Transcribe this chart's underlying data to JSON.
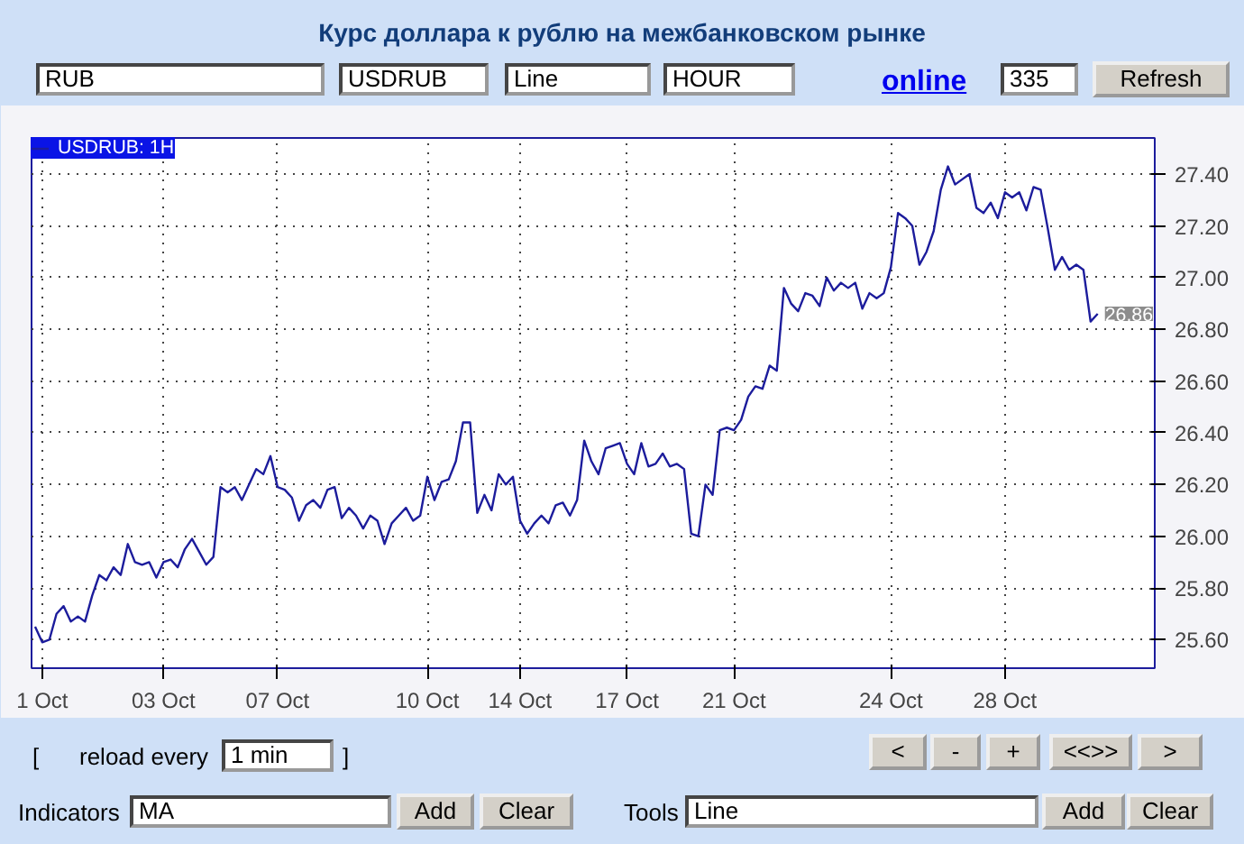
{
  "chart_data": {
    "type": "line",
    "title": "Курс доллара к рублю на межбанковском рынке",
    "categories": [
      null,
      "1 Oct",
      null,
      null,
      null,
      null,
      null,
      null,
      null,
      null,
      null,
      null,
      null,
      null,
      null,
      null,
      null,
      null,
      "03 Oct",
      null,
      null,
      null,
      null,
      null,
      null,
      null,
      null,
      null,
      null,
      null,
      null,
      null,
      null,
      null,
      "07 Oct",
      null,
      null,
      null,
      null,
      null,
      null,
      null,
      null,
      null,
      null,
      null,
      null,
      null,
      null,
      null,
      null,
      null,
      null,
      null,
      null,
      "10 Oct",
      null,
      null,
      null,
      null,
      null,
      null,
      null,
      null,
      null,
      null,
      null,
      null,
      "14 Oct",
      null,
      null,
      null,
      null,
      null,
      null,
      null,
      null,
      null,
      null,
      null,
      null,
      null,
      null,
      "17 Oct",
      null,
      null,
      null,
      null,
      null,
      null,
      null,
      null,
      null,
      null,
      null,
      null,
      null,
      null,
      "21 Oct",
      null,
      null,
      null,
      null,
      null,
      null,
      null,
      null,
      null,
      null,
      null,
      null,
      null,
      null,
      null,
      null,
      null,
      null,
      null,
      null,
      null,
      "24 Oct",
      null,
      null,
      null,
      null,
      null,
      null,
      null,
      null,
      null,
      null,
      null,
      null,
      null,
      null,
      null,
      "28 Oct",
      null,
      null,
      null,
      null,
      null,
      null,
      null,
      null,
      null,
      null,
      null,
      null,
      null
    ],
    "series": [
      {
        "name": "USDRUB: 1H",
        "color": "#1c1c9c",
        "values": [
          25.65,
          25.59,
          25.6,
          25.7,
          25.73,
          25.67,
          25.69,
          25.67,
          25.77,
          25.85,
          25.83,
          25.88,
          25.85,
          25.97,
          25.9,
          25.89,
          25.9,
          25.84,
          25.9,
          25.91,
          25.88,
          25.95,
          25.99,
          25.94,
          25.89,
          25.92,
          26.19,
          26.17,
          26.19,
          26.14,
          26.2,
          26.26,
          26.24,
          26.31,
          26.19,
          26.18,
          26.15,
          26.06,
          26.12,
          26.14,
          26.11,
          26.18,
          26.19,
          26.07,
          26.11,
          26.08,
          26.03,
          26.08,
          26.06,
          25.97,
          26.05,
          26.08,
          26.11,
          26.06,
          26.08,
          26.23,
          26.14,
          26.21,
          26.22,
          26.29,
          26.44,
          26.44,
          26.09,
          26.16,
          26.1,
          26.24,
          26.2,
          26.23,
          26.06,
          26.01,
          26.05,
          26.08,
          26.05,
          26.12,
          26.13,
          26.08,
          26.14,
          26.37,
          26.29,
          26.24,
          26.34,
          26.35,
          26.36,
          26.28,
          26.24,
          26.36,
          26.27,
          26.28,
          26.32,
          26.27,
          26.28,
          26.26,
          26.01,
          26.0,
          26.2,
          26.16,
          26.41,
          26.42,
          26.41,
          26.45,
          26.54,
          26.58,
          26.57,
          26.66,
          26.64,
          26.96,
          26.9,
          26.87,
          26.94,
          26.93,
          26.89,
          27.0,
          26.95,
          26.98,
          26.96,
          26.98,
          26.88,
          26.94,
          26.92,
          26.94,
          27.04,
          27.25,
          27.23,
          27.2,
          27.05,
          27.1,
          27.18,
          27.34,
          27.43,
          27.36,
          27.38,
          27.4,
          27.27,
          27.25,
          27.29,
          27.23,
          27.33,
          27.31,
          27.33,
          27.26,
          27.35,
          27.34,
          27.19,
          27.03,
          27.08,
          27.03,
          27.05,
          27.03,
          26.83,
          26.86
        ]
      }
    ],
    "ylim": [
      25.49,
      27.54
    ],
    "yticks": [
      {
        "value": 25.6,
        "label": "25.60"
      },
      {
        "value": 25.8,
        "label": "25.80"
      },
      {
        "value": 26.0,
        "label": "26.00"
      },
      {
        "value": 26.2,
        "label": "26.20"
      },
      {
        "value": 26.4,
        "label": "26.40"
      },
      {
        "value": 26.6,
        "label": "26.60"
      },
      {
        "value": 26.8,
        "label": "26.80"
      },
      {
        "value": 27.0,
        "label": "27.00"
      },
      {
        "value": 27.2,
        "label": "27.20"
      },
      {
        "value": 27.4,
        "label": "27.40"
      }
    ],
    "grid": true,
    "legend": "top left",
    "line_style": "solid",
    "marker": "none",
    "annotations": [
      "26.86",
      "RUB",
      "USDRUB",
      "Line",
      "HOUR",
      "online",
      "335",
      "Refresh",
      "[",
      "reload every",
      "1 min",
      "]",
      "<",
      "-",
      "+",
      "<<>>",
      ">",
      "Indicators",
      "MA",
      "Add",
      "Clear",
      "Tools",
      "Line",
      "Add",
      "Clear"
    ]
  }
}
